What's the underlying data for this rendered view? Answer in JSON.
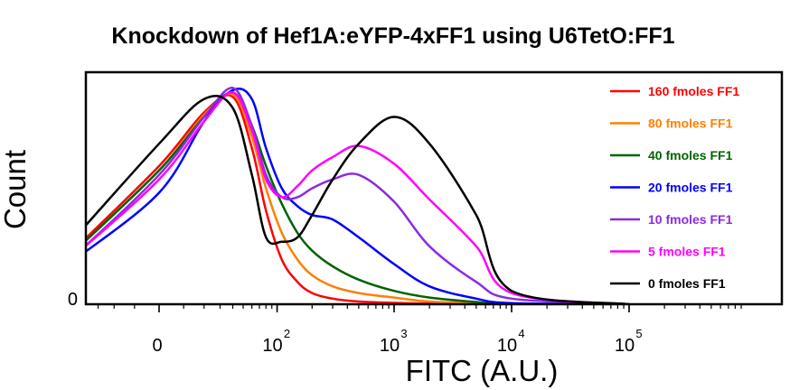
{
  "chart_data": {
    "type": "line",
    "title": "Knockdown of Hef1A:eYFP-4xFF1 using U6TetO:FF1",
    "xlabel": "FITC (A.U.)",
    "ylabel": "Count",
    "x_scale": "biexponential",
    "xlim": [
      -300,
      300000
    ],
    "ylim": [
      0,
      1.0
    ],
    "grid": false,
    "legend_position": "top-right",
    "x_ticks": [
      {
        "value": 0,
        "base": "0",
        "exp": ""
      },
      {
        "value": 100,
        "base": "10",
        "exp": "2"
      },
      {
        "value": 1000,
        "base": "10",
        "exp": "3"
      },
      {
        "value": 10000,
        "base": "10",
        "exp": "4"
      },
      {
        "value": 100000,
        "base": "10",
        "exp": "5"
      }
    ],
    "y_ticks": [
      {
        "value": 0,
        "label": "0"
      }
    ],
    "series": [
      {
        "name": "160 fmoles FF1",
        "color": "#ff0000",
        "x": [
          -300,
          -150,
          -50,
          0,
          20,
          40,
          60,
          80,
          110,
          150,
          200,
          300,
          500,
          1000,
          2000,
          5000,
          10000,
          100000
        ],
        "y": [
          0.0,
          0.02,
          0.25,
          0.62,
          0.86,
          0.93,
          0.7,
          0.42,
          0.2,
          0.1,
          0.05,
          0.025,
          0.012,
          0.006,
          0.003,
          0.001,
          0.0,
          0.0
        ]
      },
      {
        "name": "80 fmoles FF1",
        "color": "#ff8000",
        "x": [
          -300,
          -150,
          -50,
          0,
          20,
          40,
          60,
          80,
          110,
          150,
          200,
          300,
          500,
          1000,
          2000,
          5000,
          10000,
          100000
        ],
        "y": [
          0.0,
          0.02,
          0.24,
          0.6,
          0.85,
          0.94,
          0.75,
          0.52,
          0.32,
          0.2,
          0.13,
          0.08,
          0.05,
          0.03,
          0.012,
          0.005,
          0.0,
          0.0
        ]
      },
      {
        "name": "40 fmoles FF1",
        "color": "#006400",
        "x": [
          -300,
          -150,
          -50,
          0,
          20,
          40,
          60,
          80,
          110,
          150,
          200,
          300,
          500,
          1000,
          2000,
          5000,
          10000,
          100000
        ],
        "y": [
          0.0,
          0.02,
          0.24,
          0.6,
          0.84,
          0.95,
          0.8,
          0.62,
          0.45,
          0.32,
          0.24,
          0.17,
          0.11,
          0.06,
          0.03,
          0.01,
          0.0,
          0.0
        ]
      },
      {
        "name": "20 fmoles FF1",
        "color": "#0000ff",
        "x": [
          -300,
          -150,
          -50,
          0,
          20,
          40,
          60,
          80,
          110,
          150,
          200,
          300,
          500,
          1000,
          2000,
          5000,
          10000,
          100000
        ],
        "y": [
          0.0,
          0.02,
          0.2,
          0.5,
          0.82,
          0.96,
          0.92,
          0.7,
          0.52,
          0.44,
          0.4,
          0.38,
          0.3,
          0.18,
          0.08,
          0.025,
          0.005,
          0.0
        ]
      },
      {
        "name": "10 fmoles FF1",
        "color": "#8a2be2",
        "x": [
          -300,
          -150,
          -50,
          0,
          20,
          40,
          60,
          80,
          110,
          150,
          200,
          300,
          500,
          1000,
          2000,
          5000,
          10000,
          100000
        ],
        "y": [
          0.0,
          0.02,
          0.22,
          0.58,
          0.84,
          0.97,
          0.8,
          0.58,
          0.48,
          0.48,
          0.52,
          0.56,
          0.58,
          0.46,
          0.26,
          0.1,
          0.025,
          0.0
        ]
      },
      {
        "name": "5 fmoles FF1",
        "color": "#ff00ff",
        "x": [
          -300,
          -150,
          -50,
          0,
          20,
          40,
          60,
          80,
          110,
          150,
          200,
          300,
          500,
          1000,
          2000,
          5000,
          10000,
          100000
        ],
        "y": [
          0.0,
          0.02,
          0.22,
          0.56,
          0.82,
          0.95,
          0.78,
          0.56,
          0.48,
          0.53,
          0.6,
          0.66,
          0.71,
          0.63,
          0.47,
          0.26,
          0.05,
          0.0
        ]
      },
      {
        "name": "0 fmoles FF1",
        "color": "#000000",
        "x": [
          -300,
          -150,
          -50,
          0,
          20,
          40,
          60,
          80,
          110,
          150,
          200,
          300,
          500,
          1000,
          2000,
          5000,
          10000,
          100000
        ],
        "y": [
          0.0,
          0.03,
          0.3,
          0.72,
          0.92,
          0.88,
          0.58,
          0.3,
          0.28,
          0.3,
          0.4,
          0.56,
          0.72,
          0.84,
          0.72,
          0.4,
          0.06,
          0.0
        ]
      }
    ]
  }
}
